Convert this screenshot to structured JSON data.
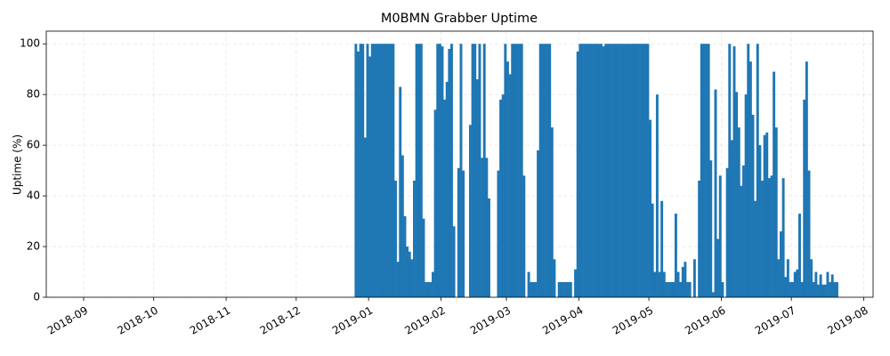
{
  "chart_data": {
    "type": "bar",
    "title": "M0BMN Grabber Uptime",
    "y_label": "Uptime (%)",
    "color": "#1f77b4",
    "grid": true,
    "xlim": [
      "2018-08-16",
      "2019-08-05"
    ],
    "ylim": [
      0,
      105
    ],
    "yticks": [
      0,
      20,
      40,
      60,
      80,
      100
    ],
    "xticks": [
      {
        "value": "2018-09-01",
        "label": "2018-09"
      },
      {
        "value": "2018-10-01",
        "label": "2018-10"
      },
      {
        "value": "2018-11-01",
        "label": "2018-11"
      },
      {
        "value": "2018-12-01",
        "label": "2018-12"
      },
      {
        "value": "2019-01-01",
        "label": "2019-01"
      },
      {
        "value": "2019-02-01",
        "label": "2019-02"
      },
      {
        "value": "2019-03-01",
        "label": "2019-03"
      },
      {
        "value": "2019-04-01",
        "label": "2019-04"
      },
      {
        "value": "2019-05-01",
        "label": "2019-05"
      },
      {
        "value": "2019-06-01",
        "label": "2019-06"
      },
      {
        "value": "2019-07-01",
        "label": "2019-07"
      },
      {
        "value": "2019-08-01",
        "label": "2019-08"
      }
    ],
    "x": [
      "2018-12-26",
      "2018-12-27",
      "2018-12-28",
      "2018-12-29",
      "2018-12-30",
      "2018-12-31",
      "2019-01-01",
      "2019-01-02",
      "2019-01-03",
      "2019-01-04",
      "2019-01-05",
      "2019-01-06",
      "2019-01-07",
      "2019-01-08",
      "2019-01-09",
      "2019-01-10",
      "2019-01-11",
      "2019-01-12",
      "2019-01-13",
      "2019-01-14",
      "2019-01-15",
      "2019-01-16",
      "2019-01-17",
      "2019-01-18",
      "2019-01-19",
      "2019-01-20",
      "2019-01-21",
      "2019-01-22",
      "2019-01-23",
      "2019-01-24",
      "2019-01-25",
      "2019-01-26",
      "2019-01-27",
      "2019-01-28",
      "2019-01-29",
      "2019-01-30",
      "2019-01-31",
      "2019-02-01",
      "2019-02-02",
      "2019-02-03",
      "2019-02-04",
      "2019-02-05",
      "2019-02-06",
      "2019-02-07",
      "2019-02-08",
      "2019-02-09",
      "2019-02-10",
      "2019-02-11",
      "2019-02-12",
      "2019-02-13",
      "2019-02-14",
      "2019-02-15",
      "2019-02-16",
      "2019-02-17",
      "2019-02-18",
      "2019-02-19",
      "2019-02-20",
      "2019-02-21",
      "2019-02-22",
      "2019-02-23",
      "2019-02-24",
      "2019-02-25",
      "2019-02-26",
      "2019-02-27",
      "2019-02-28",
      "2019-03-01",
      "2019-03-02",
      "2019-03-03",
      "2019-03-04",
      "2019-03-05",
      "2019-03-06",
      "2019-03-07",
      "2019-03-08",
      "2019-03-09",
      "2019-03-10",
      "2019-03-11",
      "2019-03-12",
      "2019-03-13",
      "2019-03-14",
      "2019-03-15",
      "2019-03-16",
      "2019-03-17",
      "2019-03-18",
      "2019-03-19",
      "2019-03-20",
      "2019-03-21",
      "2019-03-22",
      "2019-03-23",
      "2019-03-24",
      "2019-03-25",
      "2019-03-26",
      "2019-03-27",
      "2019-03-28",
      "2019-03-29",
      "2019-03-30",
      "2019-03-31",
      "2019-04-01",
      "2019-04-02",
      "2019-04-03",
      "2019-04-04",
      "2019-04-05",
      "2019-04-06",
      "2019-04-07",
      "2019-04-08",
      "2019-04-09",
      "2019-04-10",
      "2019-04-11",
      "2019-04-12",
      "2019-04-13",
      "2019-04-14",
      "2019-04-15",
      "2019-04-16",
      "2019-04-17",
      "2019-04-18",
      "2019-04-19",
      "2019-04-20",
      "2019-04-21",
      "2019-04-22",
      "2019-04-23",
      "2019-04-24",
      "2019-04-25",
      "2019-04-26",
      "2019-04-27",
      "2019-04-28",
      "2019-04-29",
      "2019-04-30",
      "2019-05-01",
      "2019-05-02",
      "2019-05-03",
      "2019-05-04",
      "2019-05-05",
      "2019-05-06",
      "2019-05-07",
      "2019-05-08",
      "2019-05-09",
      "2019-05-10",
      "2019-05-11",
      "2019-05-12",
      "2019-05-13",
      "2019-05-14",
      "2019-05-15",
      "2019-05-16",
      "2019-05-17",
      "2019-05-18",
      "2019-05-19",
      "2019-05-20",
      "2019-05-21",
      "2019-05-22",
      "2019-05-23",
      "2019-05-24",
      "2019-05-25",
      "2019-05-26",
      "2019-05-27",
      "2019-05-28",
      "2019-05-29",
      "2019-05-30",
      "2019-05-31",
      "2019-06-01",
      "2019-06-02",
      "2019-06-03",
      "2019-06-04",
      "2019-06-05",
      "2019-06-06",
      "2019-06-07",
      "2019-06-08",
      "2019-06-09",
      "2019-06-10",
      "2019-06-11",
      "2019-06-12",
      "2019-06-13",
      "2019-06-14",
      "2019-06-15",
      "2019-06-16",
      "2019-06-17",
      "2019-06-18",
      "2019-06-19",
      "2019-06-20",
      "2019-06-21",
      "2019-06-22",
      "2019-06-23",
      "2019-06-24",
      "2019-06-25",
      "2019-06-26",
      "2019-06-27",
      "2019-06-28",
      "2019-06-29",
      "2019-06-30",
      "2019-07-01",
      "2019-07-02",
      "2019-07-03",
      "2019-07-04",
      "2019-07-05",
      "2019-07-06",
      "2019-07-07",
      "2019-07-08",
      "2019-07-09",
      "2019-07-10",
      "2019-07-11",
      "2019-07-12",
      "2019-07-13",
      "2019-07-14",
      "2019-07-15",
      "2019-07-16",
      "2019-07-17",
      "2019-07-18",
      "2019-07-19",
      "2019-07-20"
    ],
    "values": [
      100,
      97,
      100,
      100,
      63,
      100,
      95,
      100,
      100,
      100,
      100,
      100,
      100,
      100,
      100,
      100,
      100,
      46,
      14,
      83,
      56,
      32,
      20,
      18,
      15,
      46,
      100,
      100,
      100,
      31,
      6,
      6,
      6,
      10,
      74,
      100,
      100,
      99,
      78,
      85,
      98,
      100,
      28,
      0,
      51,
      100,
      50,
      0,
      0,
      68,
      100,
      100,
      86,
      100,
      55,
      100,
      55,
      39,
      0,
      0,
      0,
      50,
      78,
      80,
      100,
      93,
      88,
      100,
      100,
      100,
      100,
      100,
      48,
      0,
      10,
      6,
      6,
      6,
      58,
      100,
      100,
      100,
      100,
      100,
      67,
      15,
      0,
      6,
      6,
      6,
      6,
      6,
      6,
      0,
      11,
      97,
      100,
      100,
      100,
      100,
      100,
      100,
      100,
      100,
      100,
      100,
      99,
      100,
      100,
      100,
      100,
      100,
      100,
      100,
      100,
      100,
      100,
      100,
      100,
      100,
      100,
      100,
      100,
      100,
      100,
      100,
      70,
      37,
      10,
      80,
      10,
      38,
      10,
      6,
      6,
      6,
      6,
      33,
      10,
      6,
      12,
      14,
      6,
      6,
      0,
      15,
      0,
      46,
      100,
      100,
      100,
      100,
      54,
      2,
      82,
      23,
      48,
      6,
      0,
      51,
      100,
      62,
      99,
      81,
      67,
      44,
      52,
      80,
      100,
      93,
      72,
      38,
      100,
      60,
      46,
      64,
      65,
      47,
      48,
      89,
      67,
      15,
      26,
      47,
      8,
      15,
      6,
      6,
      10,
      11,
      33,
      6,
      78,
      93,
      50,
      15,
      6,
      10,
      5,
      9,
      5,
      5,
      10,
      6,
      9,
      6,
      6
    ]
  }
}
